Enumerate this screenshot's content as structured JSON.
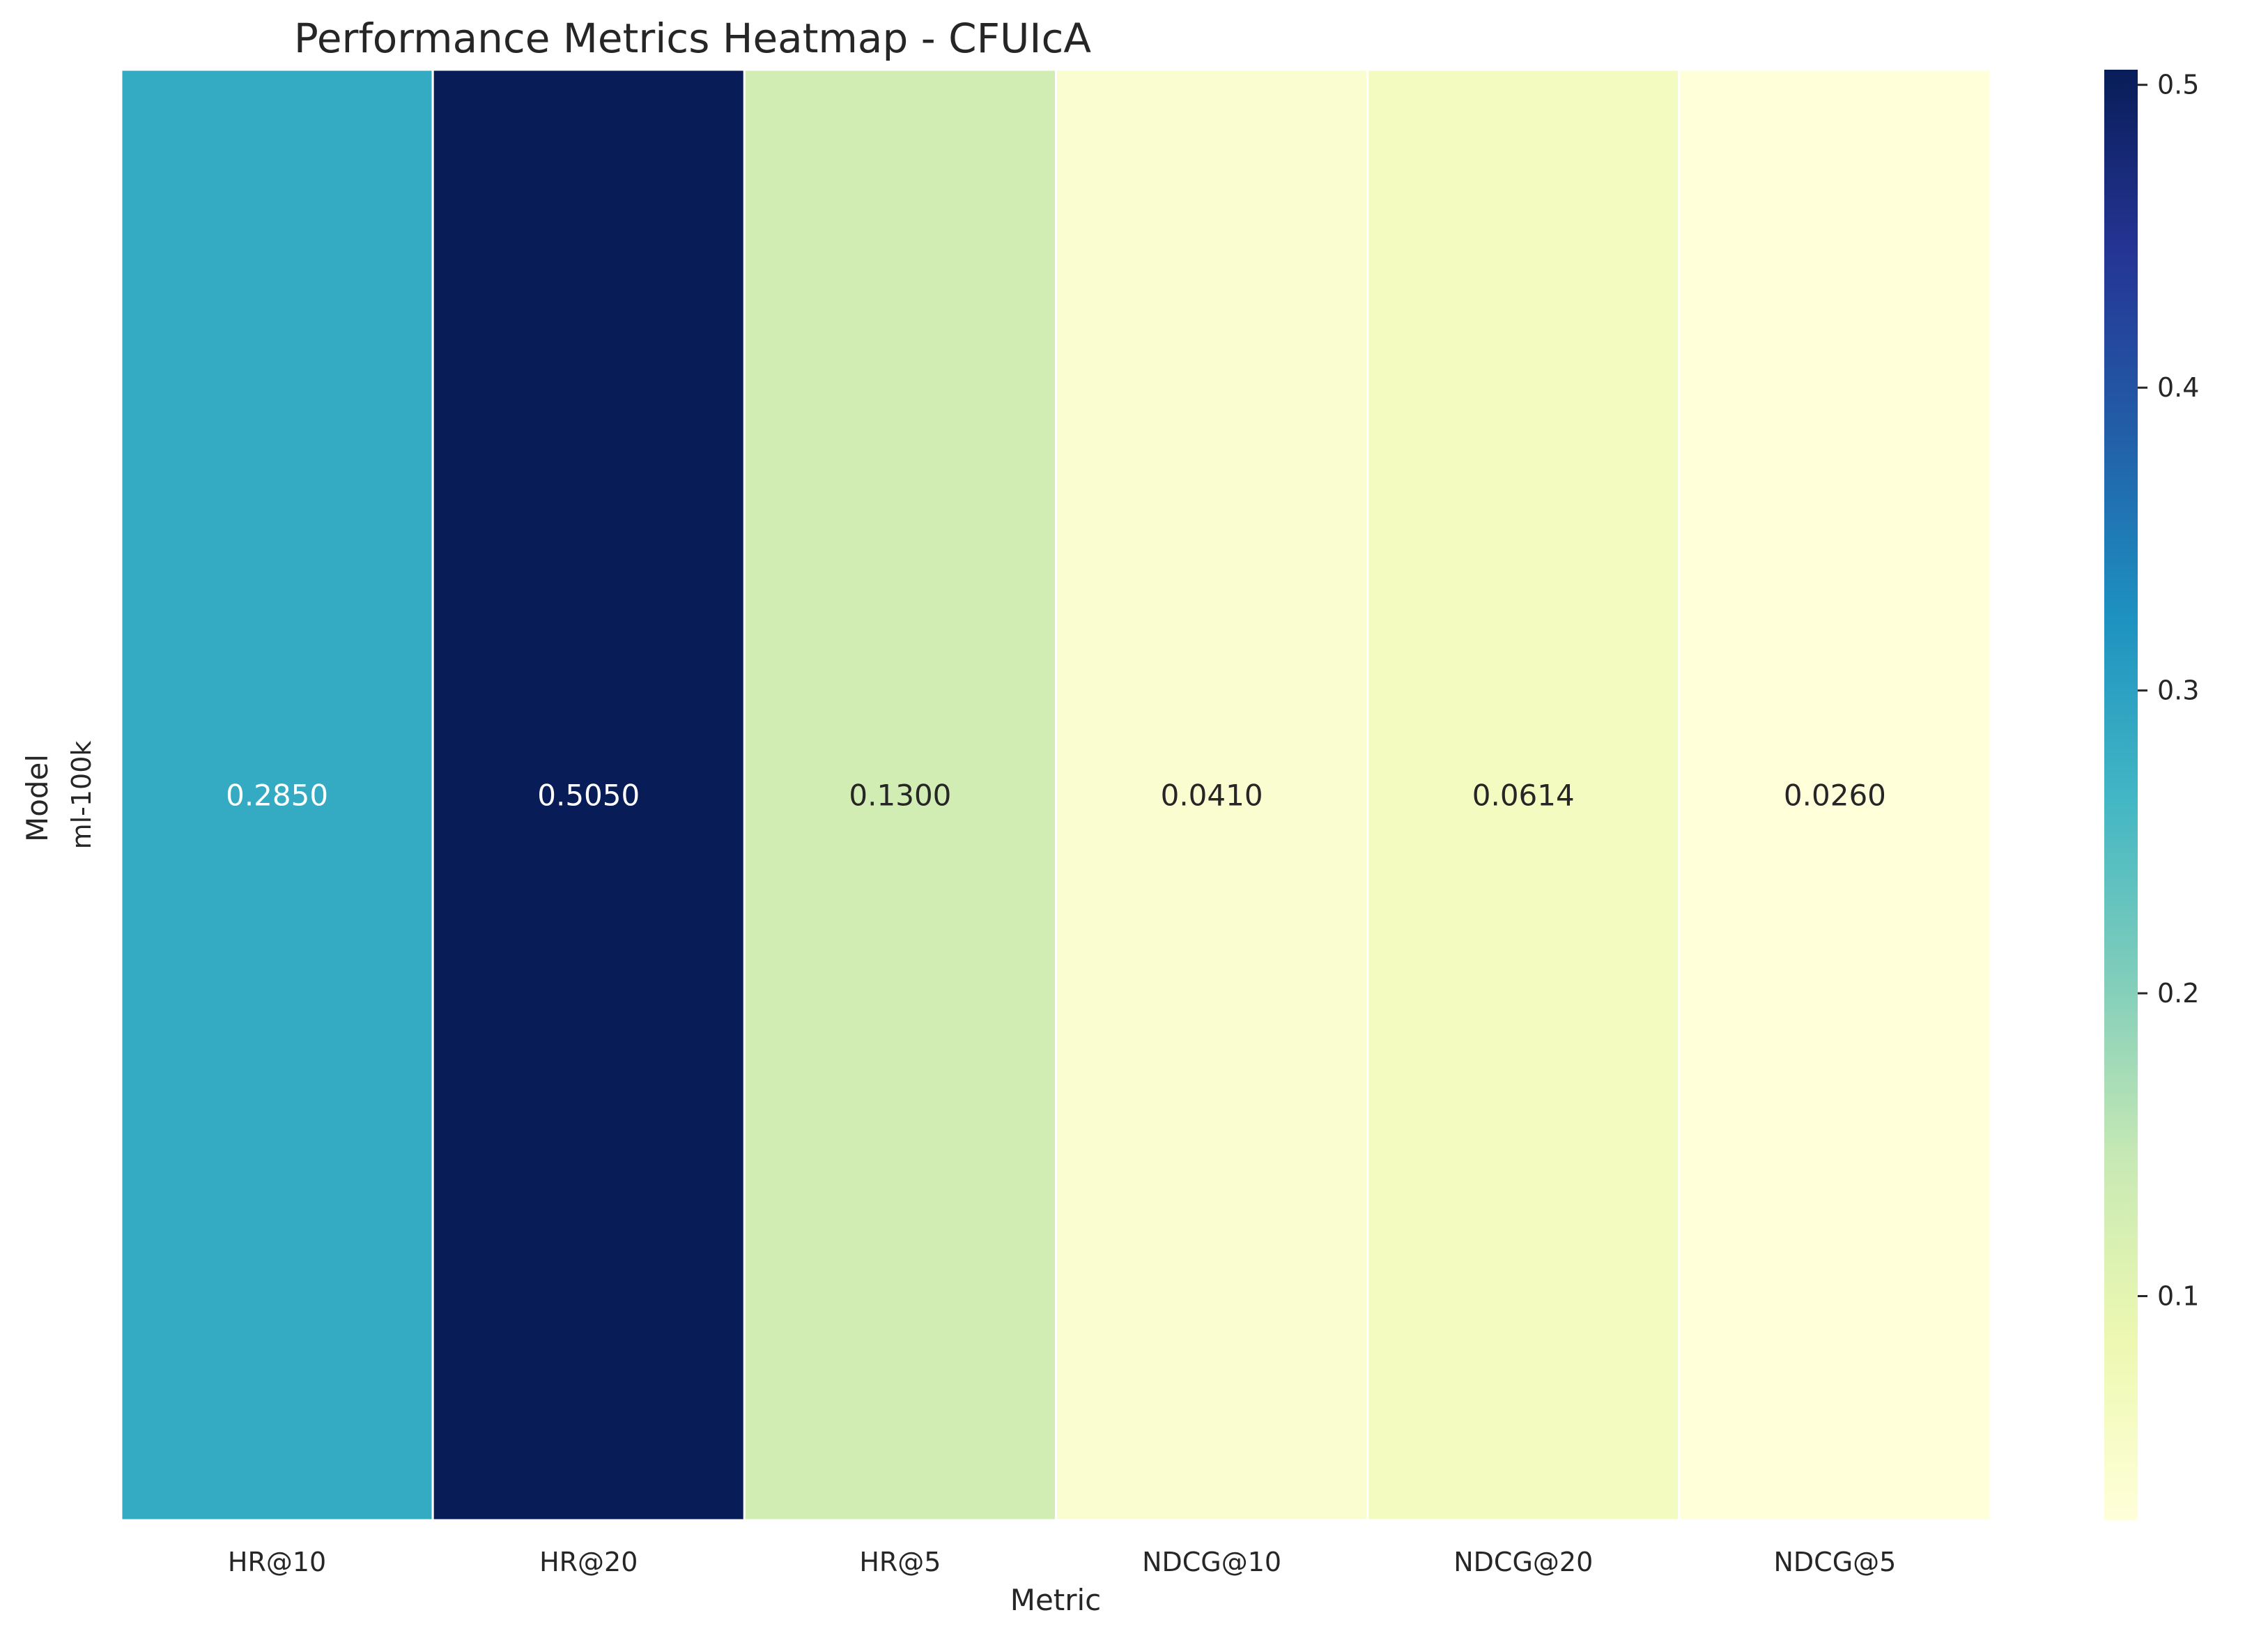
{
  "chart_data": {
    "type": "heatmap",
    "title": "Performance Metrics Heatmap - CFUIcA",
    "xlabel": "Metric",
    "ylabel": "Model",
    "x_categories": [
      "HR@10",
      "HR@20",
      "HR@5",
      "NDCG@10",
      "NDCG@20",
      "NDCG@5"
    ],
    "y_categories": [
      "ml-100k"
    ],
    "values": [
      [
        0.285,
        0.505,
        0.13,
        0.041,
        0.0614,
        0.026
      ]
    ],
    "value_labels": [
      [
        "0.2850",
        "0.5050",
        "0.1300",
        "0.0410",
        "0.0614",
        "0.0260"
      ]
    ],
    "colormap": "YlGnBu",
    "colorbar": {
      "range": [
        0.026,
        0.505
      ],
      "ticks": [
        0.1,
        0.2,
        0.3,
        0.4,
        0.5
      ],
      "tick_labels": [
        "0.1",
        "0.2",
        "0.3",
        "0.4",
        "0.5"
      ]
    },
    "colorbar_stops": [
      "#ffffd9",
      "#edf8b1",
      "#c7e9b4",
      "#7fcdbb",
      "#41b6c4",
      "#1d91c0",
      "#225ea8",
      "#253494",
      "#081d58"
    ],
    "light_text_color": "#ffffff",
    "dark_text_color": "#262626"
  }
}
